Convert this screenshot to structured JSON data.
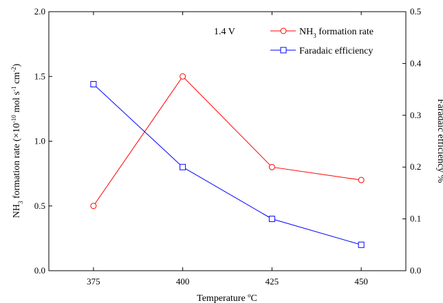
{
  "chart_data": {
    "type": "line",
    "x": [
      375,
      400,
      425,
      450
    ],
    "xlim": [
      362.5,
      462.5
    ],
    "xticks": [
      375,
      400,
      425,
      450
    ],
    "xlabel": "Temperature ºC",
    "ylabel_left": {
      "prefix": "NH",
      "prefix_sub": "3",
      "middle": " formation rate (×10",
      "exp": "-10",
      " mol s": " mol s",
      "mol": " mol s",
      "s_exp": "-1",
      "cm": " cm",
      "cm_exp": "-2",
      "close": ")"
    },
    "ylabel_right": "Faradaic efficiency %",
    "ylim_left": [
      0.0,
      2.0
    ],
    "yticks_left": [
      "0.0",
      "0.5",
      "1.0",
      "1.5",
      "2.0"
    ],
    "ylim_right": [
      0.0,
      0.5
    ],
    "yticks_right": [
      "0.0",
      "0.1",
      "0.2",
      "0.3",
      "0.4",
      "0.5"
    ],
    "annotation": "1.4 V",
    "legend_placement": "top-right",
    "series": [
      {
        "name_main": "NH",
        "name_sub": "3",
        "name_rest": " formation rate",
        "axis": "left",
        "color": "#ff0000",
        "marker": "circle",
        "values": [
          0.5,
          1.5,
          0.8,
          0.7
        ]
      },
      {
        "name": "Faradaic efficiency",
        "axis": "right",
        "color": "#0000ff",
        "marker": "square",
        "values": [
          0.36,
          0.2,
          0.1,
          0.05
        ]
      }
    ]
  }
}
